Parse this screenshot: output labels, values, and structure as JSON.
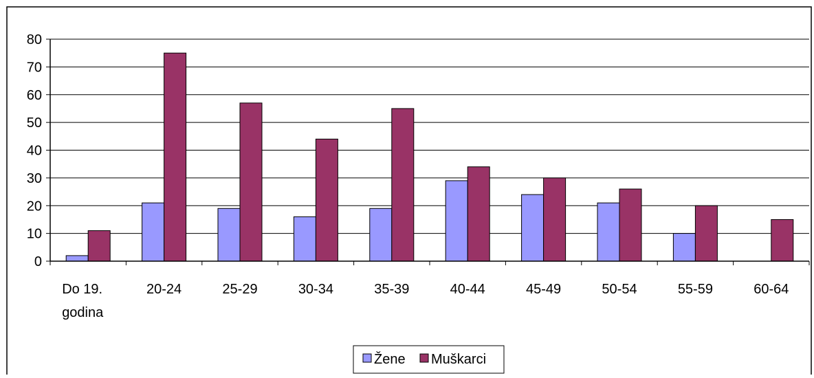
{
  "chart_data": {
    "type": "bar",
    "categories": [
      [
        "Do 19.",
        "godina"
      ],
      [
        "20-24"
      ],
      [
        "25-29"
      ],
      [
        "30-34"
      ],
      [
        "35-39"
      ],
      [
        "40-44"
      ],
      [
        "45-49"
      ],
      [
        "50-54"
      ],
      [
        "55-59"
      ],
      [
        "60-64"
      ]
    ],
    "series": [
      {
        "name": "Žene",
        "color": "#9999ff",
        "values": [
          2,
          21,
          19,
          16,
          19,
          29,
          24,
          21,
          10,
          0
        ]
      },
      {
        "name": "Muškarci",
        "color": "#993366",
        "values": [
          11,
          75,
          57,
          44,
          55,
          34,
          30,
          26,
          20,
          15
        ]
      }
    ],
    "ylim": [
      0,
      80
    ],
    "yticks": [
      0,
      10,
      20,
      30,
      40,
      50,
      60,
      70,
      80
    ],
    "grid": true,
    "legend": "bottom-center"
  }
}
